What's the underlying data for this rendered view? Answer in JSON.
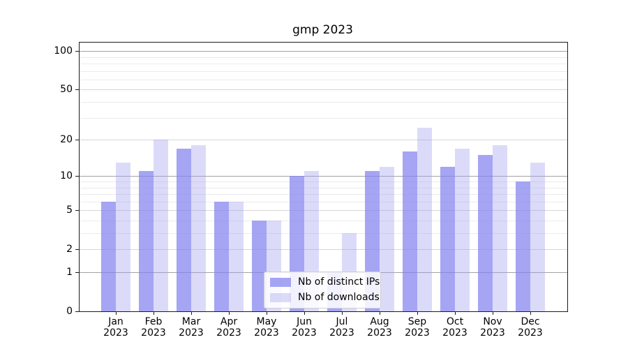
{
  "window": {
    "background": "#ffffff"
  },
  "chart_data": {
    "type": "bar",
    "title": "gmp 2023",
    "categories": [
      "Jan 2023",
      "Feb 2023",
      "Mar 2023",
      "Apr 2023",
      "May 2023",
      "Jun 2023",
      "Jul 2023",
      "Aug 2023",
      "Sep 2023",
      "Oct 2023",
      "Nov 2023",
      "Dec 2023"
    ],
    "series": [
      {
        "name": "Nb of distinct IPs",
        "color": "rgba(130,130,240,0.72)",
        "solid_hex": "#a8a8f0",
        "values": [
          6,
          11,
          17,
          6,
          4,
          10,
          1,
          11,
          16,
          12,
          15,
          9
        ]
      },
      {
        "name": "Nb of downloads",
        "color": "rgba(160,160,240,0.38)",
        "solid_hex": "#dadaf8",
        "values": [
          13,
          20,
          18,
          6,
          4,
          11,
          3,
          12,
          25,
          17,
          18,
          13
        ]
      }
    ],
    "yscale": "log1p",
    "yticks": [
      0,
      1,
      2,
      5,
      10,
      20,
      50,
      100
    ],
    "yticks_minor": [
      3,
      4,
      6,
      7,
      8,
      9,
      30,
      40,
      60,
      70,
      80,
      90
    ],
    "ylim": [
      0,
      116
    ],
    "grid": true,
    "legend_position": "lower-center",
    "colors": {
      "grid_power": "#a2a2a2",
      "grid_labeled": "#d6d6d6",
      "grid_minor": "#ebebeb",
      "axis": "#1a1a1a",
      "background": "#ffffff"
    }
  }
}
